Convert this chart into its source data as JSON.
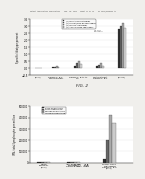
{
  "header": "Patent Application Publication    Sep. 18, 2012   Sheet 11 of 13    US 2012/0238499 A1",
  "bg_color": "#f0efec",
  "page_bg": "#e8e7e4",
  "fig2": {
    "label": "FIG. 2",
    "ylabel": "Specific Idiotype percent",
    "legend": [
      "(1)  MICE AS W TREATMENT",
      "(2)  TRIOMA/MICE NO TREATMENT",
      "(3)  MICE W TREATMENT",
      "(4)  ANTI-IDIOTYPE TREATMENT"
    ],
    "legend_colors": [
      "#333333",
      "#666666",
      "#aaaaaa",
      "#dddddd"
    ],
    "ylim": [
      -0.5,
      3.5
    ],
    "yticks": [
      -0.5,
      0.0,
      0.5,
      1.0,
      1.5,
      2.0,
      2.5,
      3.0,
      3.5
    ],
    "group_centers": [
      0.4,
      1.5,
      2.9,
      4.3,
      5.7
    ],
    "group_labels": [
      "(N=3)",
      "GROUP 1: B-1\nNo treatment",
      "GROUP 2: B+L+T\n1-3",
      "No treatment\nGROUP 1: B-1",
      "(N=30)"
    ],
    "bar_data": [
      [
        0.04,
        0.03,
        0.04,
        0.03
      ],
      [
        0.08,
        0.1,
        0.15,
        0.08
      ],
      [
        0.2,
        0.35,
        0.55,
        0.28
      ],
      [
        0.15,
        0.25,
        0.4,
        0.2
      ],
      [
        2.8,
        3.0,
        3.2,
        2.9
      ]
    ],
    "bar_colors": [
      "#333333",
      "#666666",
      "#aaaaaa",
      "#dddddd"
    ],
    "bar_width": 0.12,
    "annotation": "Fg. 2\nNO TREATMENT",
    "xlim": [
      -0.1,
      6.4
    ]
  },
  "fig4a": {
    "label": "FIG. 4A",
    "ylabel": "IFN- total lymphocyte per million",
    "legend": [
      "NAIVE STIMULATION",
      "FIRST STIMULATION",
      "SECOND STIMULATION",
      "ANTIGEN STIMULATION"
    ],
    "legend_colors": [
      "#333333",
      "#666666",
      "#aaaaaa",
      "#cccccc"
    ],
    "ylim": [
      0,
      500000
    ],
    "yticks": [
      0,
      100000,
      200000,
      300000,
      400000,
      500000
    ],
    "ytick_labels": [
      "0",
      "100000",
      "200000",
      "300000",
      "400000",
      "500000"
    ],
    "group_centers": [
      0.8,
      2.8,
      5.2
    ],
    "group_labels": [
      "NAIVE\nCONTROL\n(N=2)",
      "ANTI-IDIOTYPE\nCONTROL\nGROUP 1: B-1",
      "TRIOMA CD3+\nTREATMENT\nGROUP 2: B-3\n(N=4)"
    ],
    "bar_data": [
      [
        3000,
        2500,
        4000,
        2000
      ],
      [
        6000,
        8000,
        10000,
        7000
      ],
      [
        30000,
        200000,
        420000,
        350000
      ]
    ],
    "bar_colors": [
      "#333333",
      "#666666",
      "#aaaaaa",
      "#cccccc"
    ],
    "bar_width": 0.22,
    "xlim": [
      -0.1,
      6.8
    ]
  }
}
